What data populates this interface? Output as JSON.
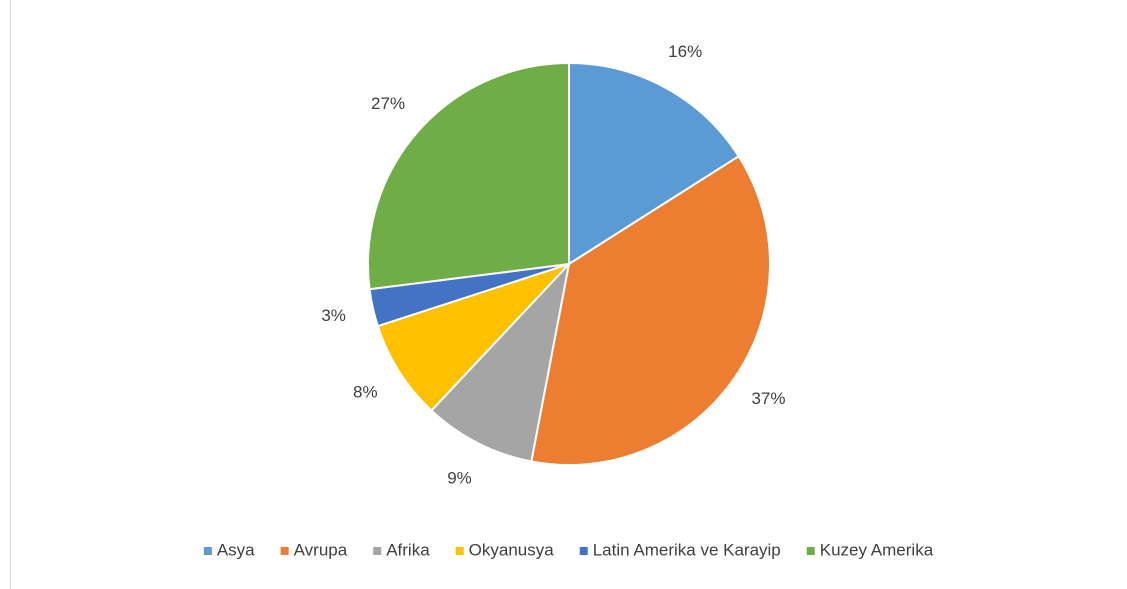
{
  "chart_data": {
    "type": "pie",
    "categories": [
      "Asya",
      "Avrupa",
      "Afrika",
      "Okyanusya",
      "Latin Amerika ve Karayip",
      "Kuzey Amerika"
    ],
    "values": [
      16,
      37,
      9,
      8,
      3,
      27
    ],
    "value_labels": [
      "16%",
      "37%",
      "9%",
      "8%",
      "3%",
      "27%"
    ],
    "colors": [
      "#5b9bd5",
      "#ed7d31",
      "#a5a5a5",
      "#ffc000",
      "#4472c4",
      "#70ad47"
    ],
    "legend": "bottom"
  }
}
